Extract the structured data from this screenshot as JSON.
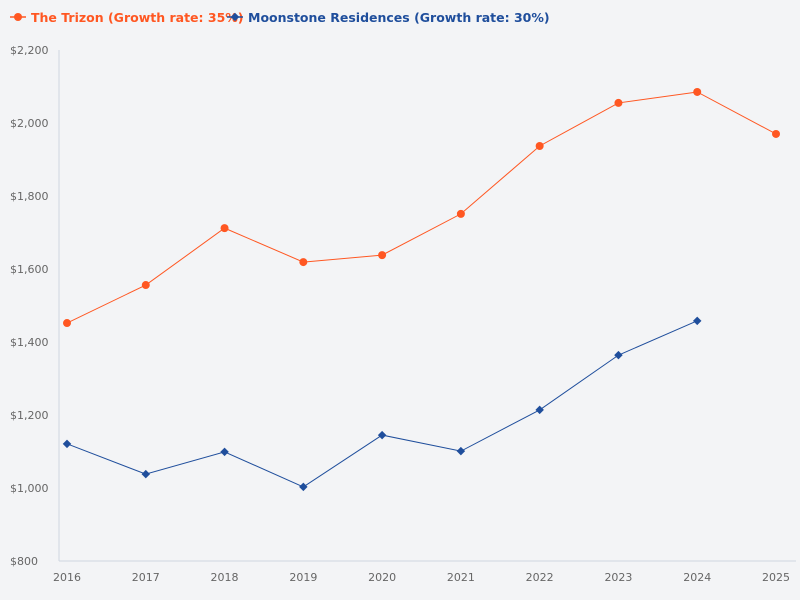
{
  "chart_data": {
    "type": "line",
    "title": "",
    "xlabel": "",
    "ylabel": "",
    "ylim": [
      800,
      2200
    ],
    "yticks": [
      "$800",
      "$1,000",
      "$1,200",
      "$1,400",
      "$1,600",
      "$1,800",
      "$2,000",
      "$2,200"
    ],
    "ytick_values": [
      800,
      1000,
      1200,
      1400,
      1600,
      1800,
      2000,
      2200
    ],
    "categories": [
      "2016",
      "2017",
      "2018",
      "2019",
      "2020",
      "2021",
      "2022",
      "2023",
      "2024",
      "2025"
    ],
    "grid": false,
    "legend_position": "top-left",
    "series": [
      {
        "name": "The Trizon (Growth rate: 35%)",
        "color": "#ff5722",
        "marker": "circle",
        "values": [
          1452,
          1556,
          1712,
          1619,
          1638,
          1751,
          1937,
          2055,
          2085,
          1970
        ]
      },
      {
        "name": "Moonstone Residences (Growth rate: 30%)",
        "color": "#1f4e9c",
        "marker": "diamond",
        "values": [
          1121,
          1038,
          1099,
          1003,
          1145,
          1101,
          1214,
          1364,
          1458,
          null
        ]
      }
    ]
  }
}
